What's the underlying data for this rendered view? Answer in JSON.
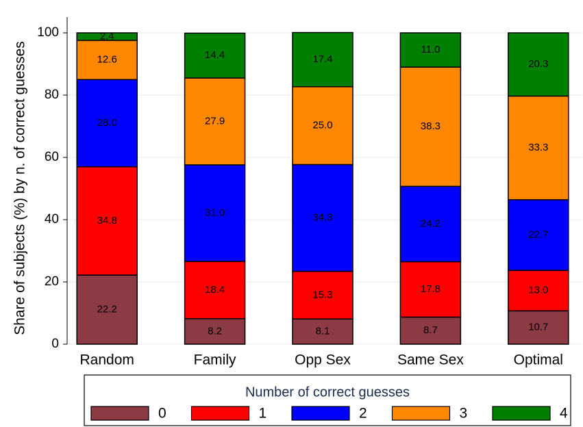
{
  "chart_data": {
    "type": "stacked_bar",
    "ylabel": "Share of subjects (%) by n. of correct guesses",
    "categories": [
      "Random",
      "Family",
      "Opp Sex",
      "Same Sex",
      "Optimal"
    ],
    "legend_title": "Number of correct guesses",
    "legend_position": "bottom",
    "series": [
      {
        "name": "0",
        "color": "#8c3a44",
        "values": [
          22.2,
          8.2,
          8.1,
          8.7,
          10.7
        ],
        "value_labels": [
          "22.2",
          "8.2",
          "8.1",
          "8.7",
          "10.7"
        ]
      },
      {
        "name": "1",
        "color": "#ff0000",
        "values": [
          34.8,
          18.4,
          15.3,
          17.8,
          13.0
        ],
        "value_labels": [
          "34.8",
          "18.4",
          "15.3",
          "17.8",
          "13.0"
        ]
      },
      {
        "name": "2",
        "color": "#0000ff",
        "values": [
          28.0,
          31.0,
          34.3,
          24.2,
          22.7
        ],
        "value_labels": [
          "28.0",
          "31.0",
          "34.3",
          "24.2",
          "22.7"
        ]
      },
      {
        "name": "3",
        "color": "#ff8800",
        "values": [
          12.6,
          27.9,
          25.0,
          38.3,
          33.3
        ],
        "value_labels": [
          "12.6",
          "27.9",
          "25.0",
          "38.3",
          "33.3"
        ]
      },
      {
        "name": "4",
        "color": "#008000",
        "values": [
          2.4,
          14.4,
          17.4,
          11.0,
          20.3
        ],
        "value_labels": [
          "2.4",
          "14.4",
          "17.4",
          "11.0",
          "20.3"
        ]
      }
    ],
    "ylim": [
      0,
      100
    ],
    "yticks": [
      0,
      20,
      40,
      60,
      80,
      100
    ],
    "grid": true
  }
}
